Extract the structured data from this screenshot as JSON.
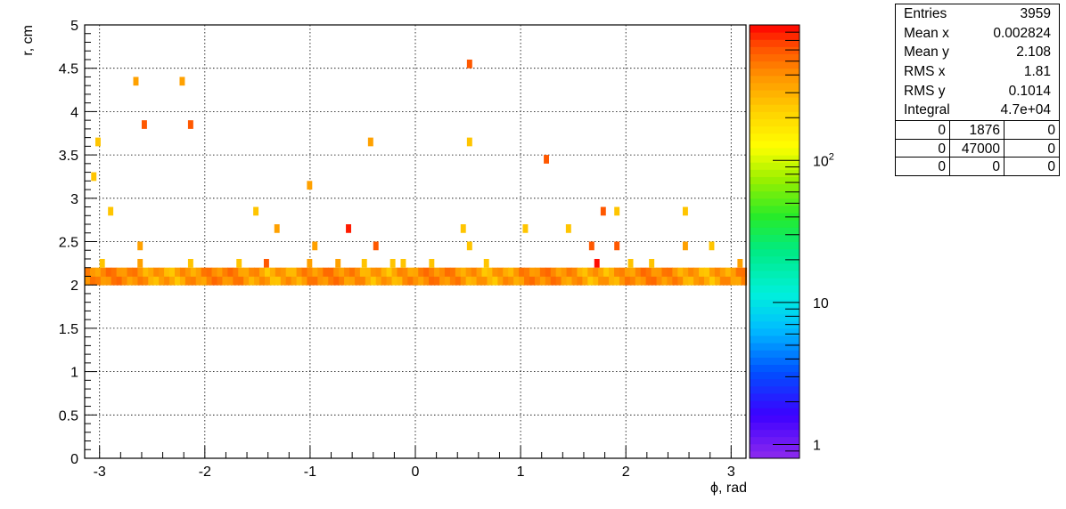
{
  "chart_data": {
    "type": "heatmap",
    "xlabel": "ϕ, rad",
    "ylabel": "r, cm",
    "xlim": [
      -3.1416,
      3.1416
    ],
    "ylim": [
      0,
      5
    ],
    "x_ticks": [
      "-3",
      "-2",
      "-1",
      "0",
      "1",
      "2",
      "3"
    ],
    "x_tick_values": [
      -3,
      -2,
      -1,
      0,
      1,
      2,
      3
    ],
    "y_ticks": [
      "0",
      "0.5",
      "1",
      "1.5",
      "2",
      "2.5",
      "3",
      "3.5",
      "4",
      "4.5",
      "5"
    ],
    "y_tick_values": [
      0,
      0.5,
      1,
      1.5,
      2,
      2.5,
      3,
      3.5,
      4,
      4.5,
      5
    ],
    "grid": true,
    "z_scale": "log",
    "z_range": [
      0.8,
      900
    ],
    "z_tick_labels": [
      "1",
      "10",
      "10²"
    ],
    "z_tick_values": [
      1,
      10,
      100
    ],
    "bin_width_x": 0.0503,
    "bin_height_y": 0.1,
    "band": {
      "y_bins": [
        2.0,
        2.1
      ],
      "level_range": [
        230,
        550
      ]
    },
    "cells": [
      {
        "x": -3.08,
        "y": 3.2,
        "z": 250
      },
      {
        "x": -3.04,
        "y": 3.6,
        "z": 250
      },
      {
        "x": -3.0,
        "y": 2.2,
        "z": 250
      },
      {
        "x": -2.92,
        "y": 2.8,
        "z": 250
      },
      {
        "x": -2.68,
        "y": 4.3,
        "z": 350
      },
      {
        "x": -2.64,
        "y": 2.2,
        "z": 350
      },
      {
        "x": -2.64,
        "y": 2.4,
        "z": 350
      },
      {
        "x": -2.6,
        "y": 3.8,
        "z": 600
      },
      {
        "x": -2.24,
        "y": 4.3,
        "z": 350
      },
      {
        "x": -2.16,
        "y": 3.8,
        "z": 600
      },
      {
        "x": -2.16,
        "y": 2.2,
        "z": 250
      },
      {
        "x": -1.7,
        "y": 2.2,
        "z": 250
      },
      {
        "x": -1.54,
        "y": 2.8,
        "z": 250
      },
      {
        "x": -1.44,
        "y": 2.2,
        "z": 600
      },
      {
        "x": -1.34,
        "y": 2.6,
        "z": 350
      },
      {
        "x": -1.03,
        "y": 3.1,
        "z": 350
      },
      {
        "x": -1.03,
        "y": 2.2,
        "z": 350
      },
      {
        "x": -0.98,
        "y": 2.4,
        "z": 350
      },
      {
        "x": -0.76,
        "y": 2.2,
        "z": 350
      },
      {
        "x": -0.66,
        "y": 2.6,
        "z": 800
      },
      {
        "x": -0.51,
        "y": 2.2,
        "z": 250
      },
      {
        "x": -0.45,
        "y": 3.6,
        "z": 350
      },
      {
        "x": -0.4,
        "y": 2.4,
        "z": 600
      },
      {
        "x": -0.24,
        "y": 2.2,
        "z": 250
      },
      {
        "x": -0.14,
        "y": 2.2,
        "z": 250
      },
      {
        "x": 0.13,
        "y": 2.2,
        "z": 250
      },
      {
        "x": 0.43,
        "y": 2.6,
        "z": 250
      },
      {
        "x": 0.49,
        "y": 4.5,
        "z": 600
      },
      {
        "x": 0.49,
        "y": 3.6,
        "z": 250
      },
      {
        "x": 0.49,
        "y": 2.4,
        "z": 250
      },
      {
        "x": 0.65,
        "y": 2.2,
        "z": 250
      },
      {
        "x": 1.02,
        "y": 2.6,
        "z": 250
      },
      {
        "x": 1.22,
        "y": 3.4,
        "z": 600
      },
      {
        "x": 1.43,
        "y": 2.6,
        "z": 250
      },
      {
        "x": 1.65,
        "y": 2.4,
        "z": 600
      },
      {
        "x": 1.7,
        "y": 2.2,
        "z": 850
      },
      {
        "x": 1.76,
        "y": 2.8,
        "z": 600
      },
      {
        "x": 1.89,
        "y": 2.8,
        "z": 250
      },
      {
        "x": 1.89,
        "y": 2.4,
        "z": 600
      },
      {
        "x": 2.02,
        "y": 2.2,
        "z": 250
      },
      {
        "x": 2.22,
        "y": 2.2,
        "z": 250
      },
      {
        "x": 2.54,
        "y": 2.8,
        "z": 250
      },
      {
        "x": 2.54,
        "y": 2.4,
        "z": 350
      },
      {
        "x": 2.79,
        "y": 2.4,
        "z": 250
      },
      {
        "x": 3.06,
        "y": 2.2,
        "z": 350
      }
    ]
  },
  "stats": {
    "rows": [
      {
        "label": "Entries",
        "value": "3959"
      },
      {
        "label": "Mean x",
        "value": "0.002824"
      },
      {
        "label": "Mean y",
        "value": "2.108"
      },
      {
        "label": "RMS x",
        "value": "1.81"
      },
      {
        "label": "RMS y",
        "value": "0.1014"
      },
      {
        "label": "Integral",
        "value": "4.7e+04"
      }
    ],
    "grid": [
      [
        "0",
        "1876",
        "0"
      ],
      [
        "0",
        "47000",
        "0"
      ],
      [
        "0",
        "0",
        "0"
      ]
    ]
  }
}
